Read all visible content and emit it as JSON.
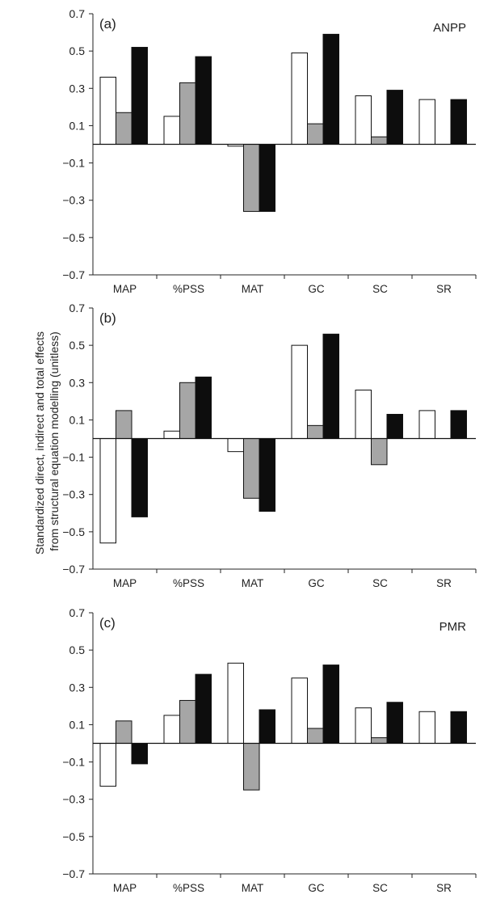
{
  "ylabel_lines": [
    "Standardized direct, indirect and total effects",
    "from structural equation modelling (unitless)"
  ],
  "chart_data": [
    {
      "type": "bar",
      "panel_label": "(a)",
      "title": "ANPP",
      "categories": [
        "MAP",
        "%PSS",
        "MAT",
        "GC",
        "SC",
        "SR"
      ],
      "ylim": [
        -0.7,
        0.7
      ],
      "yticks": [
        "0.7",
        "0.5",
        "0.3",
        "0.1",
        "-0.1",
        "-0.3",
        "-0.5",
        "-0.7"
      ],
      "series": [
        {
          "fill": "#ffffff",
          "values": [
            0.36,
            0.15,
            -0.01,
            0.49,
            0.26,
            0.24
          ]
        },
        {
          "fill": "#a6a6a6",
          "values": [
            0.17,
            0.33,
            -0.36,
            0.11,
            0.04,
            0
          ]
        },
        {
          "fill": "#0d0d0d",
          "values": [
            0.52,
            0.47,
            -0.36,
            0.59,
            0.29,
            0.24
          ]
        }
      ]
    },
    {
      "type": "bar",
      "panel_label": "(b)",
      "title": "",
      "categories": [
        "MAP",
        "%PSS",
        "MAT",
        "GC",
        "SC",
        "SR"
      ],
      "ylim": [
        -0.7,
        0.7
      ],
      "yticks": [
        "0.7",
        "0.5",
        "0.3",
        "0.1",
        "-0.1",
        "-0.3",
        "-0.5",
        "-0.7"
      ],
      "series": [
        {
          "fill": "#ffffff",
          "values": [
            -0.56,
            0.04,
            -0.07,
            0.5,
            0.26,
            0.15
          ]
        },
        {
          "fill": "#a6a6a6",
          "values": [
            0.15,
            0.3,
            -0.32,
            0.07,
            -0.14,
            0
          ]
        },
        {
          "fill": "#0d0d0d",
          "values": [
            -0.42,
            0.33,
            -0.39,
            0.56,
            0.13,
            0.15
          ]
        }
      ]
    },
    {
      "type": "bar",
      "panel_label": "(c)",
      "title": "PMR",
      "categories": [
        "MAP",
        "%PSS",
        "MAT",
        "GC",
        "SC",
        "SR"
      ],
      "ylim": [
        -0.7,
        0.7
      ],
      "yticks": [
        "0.7",
        "0.5",
        "0.3",
        "0.1",
        "-0.1",
        "-0.3",
        "-0.5",
        "-0.7"
      ],
      "series": [
        {
          "fill": "#ffffff",
          "values": [
            -0.23,
            0.15,
            0.43,
            0.35,
            0.19,
            0.17
          ]
        },
        {
          "fill": "#a6a6a6",
          "values": [
            0.12,
            0.23,
            -0.25,
            0.08,
            0.03,
            0
          ]
        },
        {
          "fill": "#0d0d0d",
          "values": [
            -0.11,
            0.37,
            0.18,
            0.42,
            0.22,
            0.17
          ]
        }
      ]
    }
  ]
}
